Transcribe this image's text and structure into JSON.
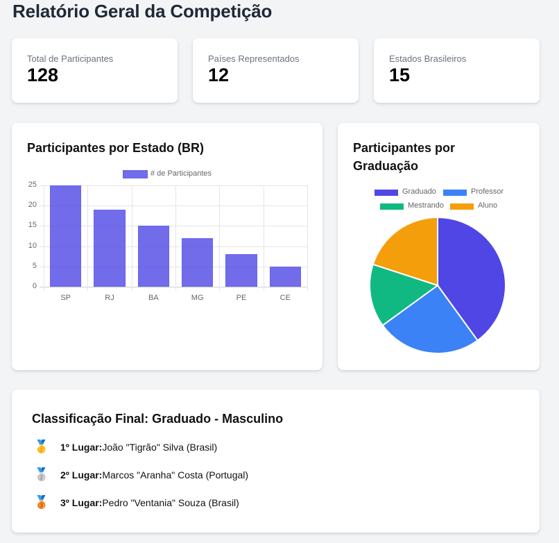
{
  "header": {
    "title": "Relatório Geral da Competição"
  },
  "stats": [
    {
      "label": "Total de Participantes",
      "value": "128"
    },
    {
      "label": "Países Representados",
      "value": "12"
    },
    {
      "label": "Estados Brasileiros",
      "value": "15"
    }
  ],
  "bar_card": {
    "title": "Participantes por Estado (BR)",
    "legend": "# de Participantes"
  },
  "pie_card": {
    "title_line1": "Participantes por",
    "title_line2": "Graduação",
    "legend": [
      "Graduado",
      "Professor",
      "Mestrando",
      "Aluno"
    ]
  },
  "ranking": {
    "title": "Classificação Final: Graduado - Masculino",
    "items": [
      {
        "medal": "🥇",
        "medal_icon": "gold-medal-icon",
        "position": "1º Lugar:",
        "name": "João \"Tigrão\" Silva (Brasil)"
      },
      {
        "medal": "🥈",
        "medal_icon": "silver-medal-icon",
        "position": "2º Lugar:",
        "name": "Marcos \"Aranha\" Costa (Portugal)"
      },
      {
        "medal": "🥉",
        "medal_icon": "bronze-medal-icon",
        "position": "3º Lugar:",
        "name": "Pedro \"Ventania\" Souza (Brasil)"
      }
    ]
  },
  "colors": {
    "bar": "#6c63e6",
    "graduado": "#4f46e5",
    "professor": "#3b82f6",
    "mestrando": "#10b981",
    "aluno": "#f59e0b"
  },
  "chart_data": [
    {
      "type": "bar",
      "title": "Participantes por Estado (BR)",
      "categories": [
        "SP",
        "RJ",
        "BA",
        "MG",
        "PE",
        "CE"
      ],
      "series": [
        {
          "name": "# de Participantes",
          "values": [
            25,
            19,
            15,
            12,
            8,
            5
          ]
        }
      ],
      "yticks": [
        "0",
        "5",
        "10",
        "15",
        "20",
        "25"
      ],
      "ylim": [
        0,
        25
      ],
      "xlabel": "",
      "ylabel": "",
      "grid": true,
      "legend_position": "top"
    },
    {
      "type": "pie",
      "title": "Participantes por Graduação",
      "categories": [
        "Graduado",
        "Professor",
        "Mestrando",
        "Aluno"
      ],
      "values": [
        40,
        25,
        15,
        20
      ],
      "colors": [
        "#4f46e5",
        "#3b82f6",
        "#10b981",
        "#f59e0b"
      ],
      "legend_position": "top"
    }
  ]
}
